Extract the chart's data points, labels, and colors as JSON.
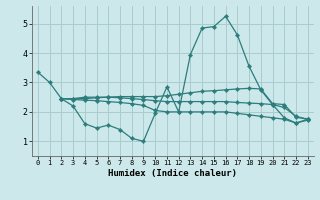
{
  "xlabel": "Humidex (Indice chaleur)",
  "xlim": [
    -0.5,
    23.5
  ],
  "ylim": [
    0.5,
    5.6
  ],
  "xticks": [
    0,
    1,
    2,
    3,
    4,
    5,
    6,
    7,
    8,
    9,
    10,
    11,
    12,
    13,
    14,
    15,
    16,
    17,
    18,
    19,
    20,
    21,
    22,
    23
  ],
  "yticks": [
    1,
    2,
    3,
    4,
    5
  ],
  "background_color": "#cce8ea",
  "grid_color": "#aaccce",
  "line_color": "#2d7d7d",
  "lines": [
    {
      "x": [
        0,
        1,
        2,
        3,
        4,
        5,
        6,
        7,
        8,
        9,
        10,
        11,
        12,
        13,
        14,
        15,
        16,
        17,
        18,
        19,
        20,
        21,
        22,
        23
      ],
      "y": [
        3.35,
        3.0,
        2.45,
        2.2,
        1.6,
        1.45,
        1.55,
        1.4,
        1.1,
        1.0,
        1.95,
        2.85,
        2.0,
        3.95,
        4.85,
        4.9,
        5.25,
        4.62,
        3.55,
        2.75,
        2.25,
        1.8,
        1.62,
        1.75
      ]
    },
    {
      "x": [
        2,
        3,
        4,
        5,
        6,
        7,
        8,
        9,
        10,
        11,
        12,
        13,
        14,
        15,
        16,
        17,
        18,
        19,
        20,
        21,
        22,
        23
      ],
      "y": [
        2.45,
        2.42,
        2.4,
        2.38,
        2.35,
        2.32,
        2.28,
        2.22,
        2.05,
        2.0,
        2.0,
        2.0,
        2.0,
        2.0,
        2.0,
        1.95,
        1.9,
        1.85,
        1.8,
        1.75,
        1.62,
        1.72
      ]
    },
    {
      "x": [
        2,
        3,
        4,
        5,
        6,
        7,
        8,
        9,
        10,
        11,
        12,
        13,
        14,
        15,
        16,
        17,
        18,
        19,
        20,
        21,
        22,
        23
      ],
      "y": [
        2.45,
        2.45,
        2.5,
        2.5,
        2.5,
        2.48,
        2.45,
        2.42,
        2.38,
        2.35,
        2.35,
        2.35,
        2.35,
        2.35,
        2.35,
        2.32,
        2.3,
        2.28,
        2.25,
        2.15,
        1.85,
        1.75
      ]
    },
    {
      "x": [
        2,
        3,
        4,
        5,
        6,
        7,
        8,
        9,
        10,
        11,
        12,
        13,
        14,
        15,
        16,
        17,
        18,
        19,
        20,
        21,
        22,
        23
      ],
      "y": [
        2.45,
        2.45,
        2.45,
        2.48,
        2.5,
        2.52,
        2.52,
        2.52,
        2.52,
        2.55,
        2.6,
        2.65,
        2.7,
        2.72,
        2.75,
        2.78,
        2.8,
        2.78,
        2.28,
        2.25,
        1.82,
        1.75
      ]
    }
  ]
}
